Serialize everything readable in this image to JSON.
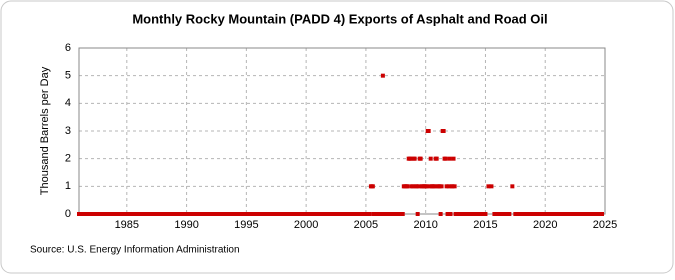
{
  "chart_data": {
    "type": "scatter",
    "title": "Monthly Rocky Mountain (PADD 4) Exports of Asphalt and Road Oil",
    "y_label": "Thousand Barrels per Day",
    "source": "Source: U.S. Energy Information Administration",
    "xlim": [
      1981,
      2025
    ],
    "xticks": [
      1985,
      1990,
      1995,
      2000,
      2005,
      2010,
      2015,
      2020,
      2025
    ],
    "ylim": [
      0,
      6
    ],
    "yticks": [
      0,
      1,
      2,
      3,
      4,
      5,
      6
    ],
    "grid": true,
    "series": [
      {
        "color": "#cc0000",
        "x": [
          1981,
          1981.25,
          1981.5,
          1981.75,
          1982,
          1982.25,
          1982.5,
          1982.75,
          1983,
          1983.25,
          1983.5,
          1983.75,
          1984,
          1984.25,
          1984.5,
          1984.75,
          1985,
          1985.25,
          1985.5,
          1985.75,
          1986,
          1986.25,
          1986.5,
          1986.75,
          1987,
          1987.25,
          1987.5,
          1987.75,
          1988,
          1988.25,
          1988.5,
          1988.75,
          1989,
          1989.25,
          1989.5,
          1989.75,
          1990,
          1990.25,
          1990.5,
          1990.75,
          1991,
          1991.25,
          1991.5,
          1991.75,
          1992,
          1992.25,
          1992.5,
          1992.75,
          1993,
          1993.25,
          1993.5,
          1993.75,
          1994,
          1994.25,
          1994.5,
          1994.75,
          1995,
          1995.25,
          1995.5,
          1995.75,
          1996,
          1996.25,
          1996.5,
          1996.75,
          1997,
          1997.25,
          1997.5,
          1997.75,
          1998,
          1998.25,
          1998.5,
          1998.75,
          1999,
          1999.25,
          1999.5,
          1999.75,
          2000,
          2000.25,
          2000.5,
          2000.75,
          2001,
          2001.25,
          2001.5,
          2001.75,
          2002,
          2002.25,
          2002.5,
          2002.75,
          2003,
          2003.25,
          2003.5,
          2003.75,
          2004,
          2004.25,
          2004.5,
          2004.75,
          2005,
          2005.08,
          2005.17,
          2005.25,
          2005.33,
          2005.42,
          2005.5,
          2005.58,
          2005.67,
          2005.75,
          2005.83,
          2005.92,
          2006,
          2006.08,
          2006.17,
          2006.25,
          2006.33,
          2006.42,
          2006.5,
          2006.58,
          2006.67,
          2006.75,
          2006.83,
          2006.92,
          2007,
          2007.08,
          2007.17,
          2007.25,
          2007.33,
          2007.42,
          2007.5,
          2007.58,
          2007.67,
          2007.75,
          2007.83,
          2007.92,
          2008,
          2008.08,
          2008.17,
          2008.25,
          2008.33,
          2008.42,
          2008.5,
          2008.58,
          2008.67,
          2008.75,
          2008.83,
          2008.92,
          2009,
          2009.08,
          2009.17,
          2009.25,
          2009.33,
          2009.42,
          2009.5,
          2009.58,
          2009.67,
          2009.75,
          2009.83,
          2009.92,
          2010,
          2010.08,
          2010.17,
          2010.25,
          2010.33,
          2010.42,
          2010.5,
          2010.58,
          2010.67,
          2010.75,
          2010.83,
          2010.92,
          2011,
          2011.08,
          2011.17,
          2011.25,
          2011.33,
          2011.42,
          2011.5,
          2011.58,
          2011.67,
          2011.75,
          2011.83,
          2011.92,
          2012,
          2012.08,
          2012.17,
          2012.25,
          2012.33,
          2012.42,
          2012.5,
          2012.58,
          2012.67,
          2012.75,
          2012.83,
          2012.92,
          2013,
          2013.25,
          2013.5,
          2013.75,
          2014,
          2014.25,
          2014.5,
          2014.75,
          2015,
          2015.25,
          2015.5,
          2015.75,
          2016,
          2016.25,
          2016.5,
          2016.75,
          2017,
          2017.25,
          2017.5,
          2017.75,
          2018,
          2018.25,
          2018.5,
          2018.75,
          2019,
          2019.25,
          2019.5,
          2019.75,
          2020,
          2020.25,
          2020.5,
          2020.75,
          2021,
          2021.25,
          2021.5,
          2021.75,
          2022,
          2022.25,
          2022.5,
          2022.75,
          2023,
          2023.25,
          2023.5,
          2023.75,
          2024,
          2024.25,
          2024.5,
          2024.75
        ],
        "values": [
          0,
          0,
          0,
          0,
          0,
          0,
          0,
          0,
          0,
          0,
          0,
          0,
          0,
          0,
          0,
          0,
          0,
          0,
          0,
          0,
          0,
          0,
          0,
          0,
          0,
          0,
          0,
          0,
          0,
          0,
          0,
          0,
          0,
          0,
          0,
          0,
          0,
          0,
          0,
          0,
          0,
          0,
          0,
          0,
          0,
          0,
          0,
          0,
          0,
          0,
          0,
          0,
          0,
          0,
          0,
          0,
          0,
          0,
          0,
          0,
          0,
          0,
          0,
          0,
          0,
          0,
          0,
          0,
          0,
          0,
          0,
          0,
          0,
          0,
          0,
          0,
          0,
          0,
          0,
          0,
          0,
          0,
          0,
          0,
          0,
          0,
          0,
          0,
          0,
          0,
          0,
          0,
          0,
          0,
          0,
          0,
          0,
          0,
          0,
          0,
          0,
          1,
          1,
          1,
          0,
          0,
          0,
          0,
          0,
          0,
          0,
          0,
          0,
          5,
          0,
          0,
          0,
          0,
          0,
          0,
          0,
          0,
          0,
          0,
          0,
          0,
          0,
          0,
          0,
          0,
          0,
          0,
          0,
          0,
          1,
          1,
          1,
          1,
          1,
          2,
          2,
          2,
          1,
          1,
          2,
          2,
          1,
          1,
          0,
          1,
          2,
          2,
          1,
          1,
          1,
          1,
          1,
          1,
          3,
          3,
          1,
          2,
          1,
          1,
          1,
          1,
          2,
          2,
          1,
          1,
          1,
          0,
          1,
          3,
          3,
          2,
          2,
          1,
          0,
          1,
          2,
          0,
          1,
          1,
          2,
          1,
          0,
          0,
          0,
          0,
          0,
          0,
          0,
          0,
          0,
          0,
          0,
          0,
          0,
          0,
          0,
          1,
          1,
          0,
          0,
          0,
          0,
          0,
          0,
          1,
          0,
          0,
          0,
          0,
          0,
          0,
          0,
          0,
          0,
          0,
          0,
          0,
          0,
          0,
          0,
          0,
          0,
          0,
          0,
          0,
          0,
          0,
          0,
          0,
          0,
          0,
          0,
          0,
          0,
          0
        ]
      }
    ]
  }
}
